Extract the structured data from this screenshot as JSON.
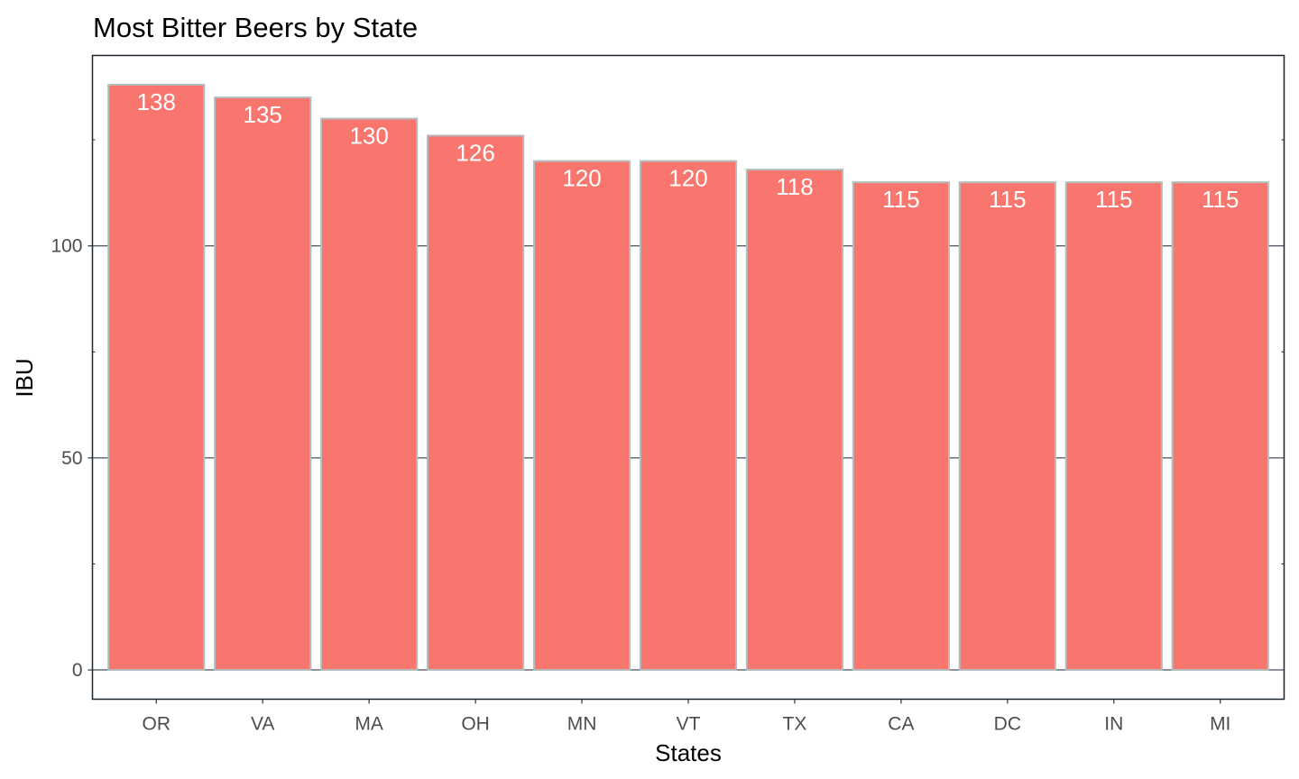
{
  "chart_data": {
    "type": "bar",
    "title": "Most Bitter Beers by State",
    "xlabel": "States",
    "ylabel": "IBU",
    "categories": [
      "OR",
      "VA",
      "MA",
      "OH",
      "MN",
      "VT",
      "TX",
      "CA",
      "DC",
      "IN",
      "MI"
    ],
    "values": [
      138,
      135,
      130,
      126,
      120,
      120,
      118,
      115,
      115,
      115,
      115
    ],
    "data_labels": [
      "138",
      "135",
      "130",
      "126",
      "120",
      "120",
      "118",
      "115",
      "115",
      "115",
      "115"
    ],
    "yticks": [
      0,
      50,
      100
    ],
    "ytick_labels": [
      "0",
      "50",
      "100"
    ],
    "ylim": [
      -6.9,
      144.9
    ],
    "grid": "major horizontal lines at y ticks",
    "legend": "none",
    "colors": {
      "bar_fill": "#f8766d",
      "bar_outline": "#b4bcbc",
      "grid": "#1a2530",
      "panel_border": "#1a2530",
      "label_text": "#ffffff"
    }
  }
}
